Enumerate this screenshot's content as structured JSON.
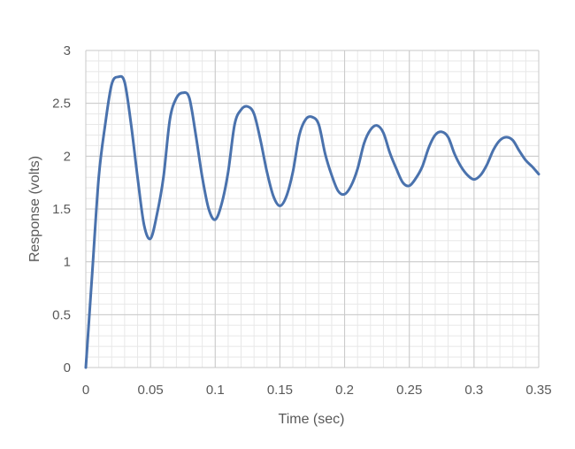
{
  "chart_data": {
    "type": "line",
    "title": "",
    "xlabel": "Time (sec)",
    "ylabel": "Response (volts)",
    "xlim": [
      0,
      0.35
    ],
    "ylim": [
      0,
      3
    ],
    "x_ticks": [
      0,
      0.05,
      0.1,
      0.15,
      0.2,
      0.25,
      0.3,
      0.35
    ],
    "x_tick_labels": [
      "0",
      "0.05",
      "0.1",
      "0.15",
      "0.2",
      "0.25",
      "0.3",
      "0.35"
    ],
    "y_ticks": [
      0,
      0.5,
      1,
      1.5,
      2,
      2.5,
      3
    ],
    "y_tick_labels": [
      "0",
      "0.5",
      "1",
      "1.5",
      "2",
      "2.5",
      "3"
    ],
    "grid": true,
    "minor_grid": true,
    "legend": "none",
    "series": [
      {
        "color": "#4a72ad",
        "x": [
          0,
          0.005,
          0.01,
          0.015,
          0.02,
          0.025,
          0.03,
          0.035,
          0.04,
          0.045,
          0.05,
          0.055,
          0.06,
          0.065,
          0.07,
          0.075,
          0.08,
          0.085,
          0.09,
          0.095,
          0.1,
          0.105,
          0.11,
          0.115,
          0.12,
          0.125,
          0.13,
          0.135,
          0.14,
          0.145,
          0.15,
          0.155,
          0.16,
          0.165,
          0.17,
          0.175,
          0.18,
          0.185,
          0.19,
          0.195,
          0.2,
          0.205,
          0.21,
          0.215,
          0.22,
          0.225,
          0.23,
          0.235,
          0.24,
          0.245,
          0.25,
          0.255,
          0.26,
          0.265,
          0.27,
          0.275,
          0.28,
          0.285,
          0.29,
          0.295,
          0.3,
          0.305,
          0.31,
          0.315,
          0.32,
          0.325,
          0.33,
          0.335,
          0.34,
          0.345,
          0.35
        ],
        "y": [
          0,
          0.9,
          1.8,
          2.3,
          2.68,
          2.75,
          2.7,
          2.3,
          1.8,
          1.35,
          1.22,
          1.45,
          1.8,
          2.35,
          2.55,
          2.6,
          2.55,
          2.2,
          1.8,
          1.5,
          1.4,
          1.55,
          1.85,
          2.3,
          2.44,
          2.47,
          2.4,
          2.15,
          1.85,
          1.62,
          1.53,
          1.62,
          1.85,
          2.2,
          2.35,
          2.37,
          2.3,
          2.02,
          1.82,
          1.67,
          1.64,
          1.72,
          1.88,
          2.12,
          2.25,
          2.29,
          2.22,
          2.03,
          1.88,
          1.75,
          1.72,
          1.79,
          1.9,
          2.08,
          2.2,
          2.23,
          2.18,
          2.02,
          1.9,
          1.82,
          1.78,
          1.82,
          1.92,
          2.06,
          2.15,
          2.18,
          2.15,
          2.05,
          1.96,
          1.9,
          1.83
        ]
      }
    ]
  }
}
